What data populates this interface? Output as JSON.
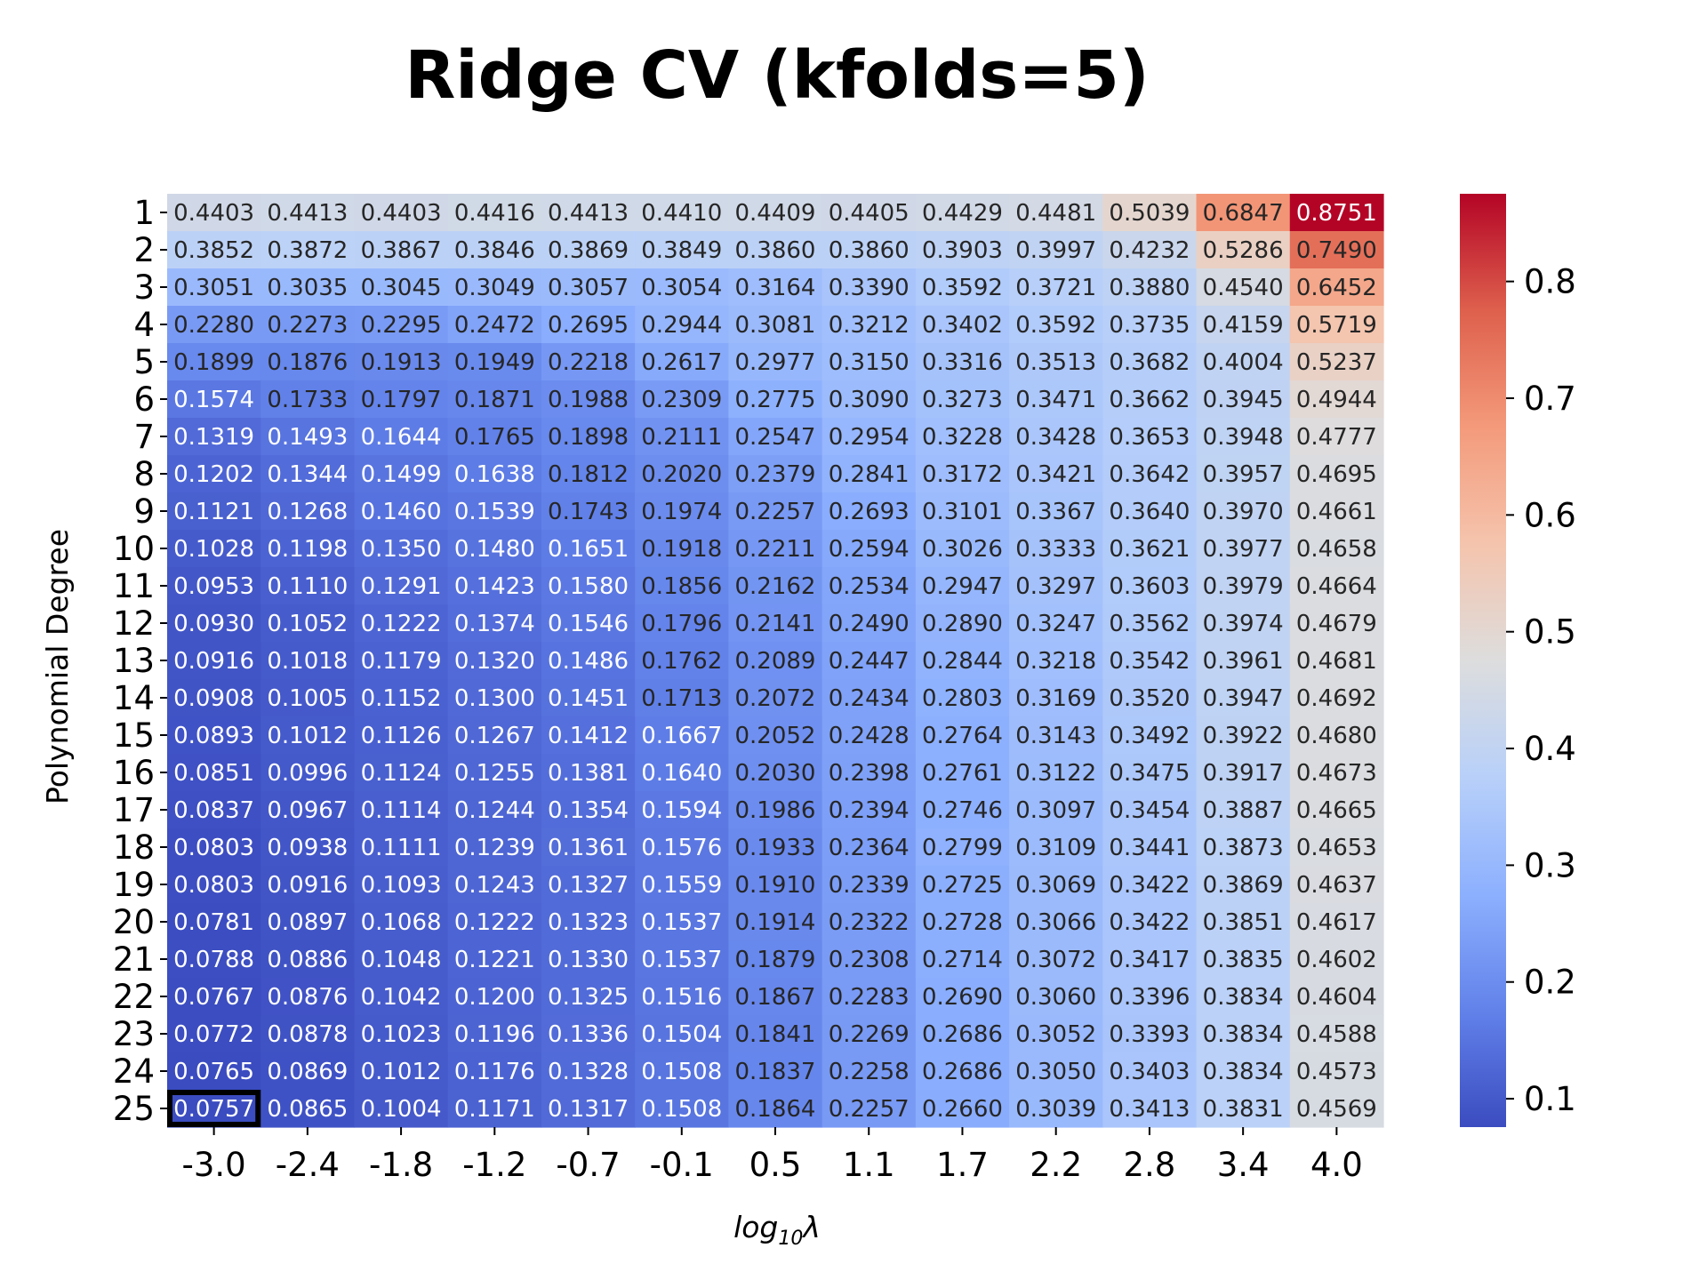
{
  "chart_data": {
    "type": "heatmap",
    "title": "Ridge CV (kfolds=5)",
    "xlabel": "log",
    "xlabel_sub": "10",
    "xlabel_tail": "λ",
    "ylabel": "Polynomial Degree",
    "x_ticks": [
      "-3.0",
      "-2.4",
      "-1.8",
      "-1.2",
      "-0.7",
      "-0.1",
      "0.5",
      "1.1",
      "1.7",
      "2.2",
      "2.8",
      "3.4",
      "4.0"
    ],
    "y_ticks": [
      "1",
      "2",
      "3",
      "4",
      "5",
      "6",
      "7",
      "8",
      "9",
      "10",
      "11",
      "12",
      "13",
      "14",
      "15",
      "16",
      "17",
      "18",
      "19",
      "20",
      "21",
      "22",
      "23",
      "24",
      "25"
    ],
    "values": [
      [
        0.4403,
        0.4413,
        0.4403,
        0.4416,
        0.4413,
        0.441,
        0.4409,
        0.4405,
        0.4429,
        0.4481,
        0.5039,
        0.6847,
        0.8751
      ],
      [
        0.3852,
        0.3872,
        0.3867,
        0.3846,
        0.3869,
        0.3849,
        0.386,
        0.386,
        0.3903,
        0.3997,
        0.4232,
        0.5286,
        0.749
      ],
      [
        0.3051,
        0.3035,
        0.3045,
        0.3049,
        0.3057,
        0.3054,
        0.3164,
        0.339,
        0.3592,
        0.3721,
        0.388,
        0.454,
        0.6452
      ],
      [
        0.228,
        0.2273,
        0.2295,
        0.2472,
        0.2695,
        0.2944,
        0.3081,
        0.3212,
        0.3402,
        0.3592,
        0.3735,
        0.4159,
        0.5719
      ],
      [
        0.1899,
        0.1876,
        0.1913,
        0.1949,
        0.2218,
        0.2617,
        0.2977,
        0.315,
        0.3316,
        0.3513,
        0.3682,
        0.4004,
        0.5237
      ],
      [
        0.1574,
        0.1733,
        0.1797,
        0.1871,
        0.1988,
        0.2309,
        0.2775,
        0.309,
        0.3273,
        0.3471,
        0.3662,
        0.3945,
        0.4944
      ],
      [
        0.1319,
        0.1493,
        0.1644,
        0.1765,
        0.1898,
        0.2111,
        0.2547,
        0.2954,
        0.3228,
        0.3428,
        0.3653,
        0.3948,
        0.4777
      ],
      [
        0.1202,
        0.1344,
        0.1499,
        0.1638,
        0.1812,
        0.202,
        0.2379,
        0.2841,
        0.3172,
        0.3421,
        0.3642,
        0.3957,
        0.4695
      ],
      [
        0.1121,
        0.1268,
        0.146,
        0.1539,
        0.1743,
        0.1974,
        0.2257,
        0.2693,
        0.3101,
        0.3367,
        0.364,
        0.397,
        0.4661
      ],
      [
        0.1028,
        0.1198,
        0.135,
        0.148,
        0.1651,
        0.1918,
        0.2211,
        0.2594,
        0.3026,
        0.3333,
        0.3621,
        0.3977,
        0.4658
      ],
      [
        0.0953,
        0.111,
        0.1291,
        0.1423,
        0.158,
        0.1856,
        0.2162,
        0.2534,
        0.2947,
        0.3297,
        0.3603,
        0.3979,
        0.4664
      ],
      [
        0.093,
        0.1052,
        0.1222,
        0.1374,
        0.1546,
        0.1796,
        0.2141,
        0.249,
        0.289,
        0.3247,
        0.3562,
        0.3974,
        0.4679
      ],
      [
        0.0916,
        0.1018,
        0.1179,
        0.132,
        0.1486,
        0.1762,
        0.2089,
        0.2447,
        0.2844,
        0.3218,
        0.3542,
        0.3961,
        0.4681
      ],
      [
        0.0908,
        0.1005,
        0.1152,
        0.13,
        0.1451,
        0.1713,
        0.2072,
        0.2434,
        0.2803,
        0.3169,
        0.352,
        0.3947,
        0.4692
      ],
      [
        0.0893,
        0.1012,
        0.1126,
        0.1267,
        0.1412,
        0.1667,
        0.2052,
        0.2428,
        0.2764,
        0.3143,
        0.3492,
        0.3922,
        0.468
      ],
      [
        0.0851,
        0.0996,
        0.1124,
        0.1255,
        0.1381,
        0.164,
        0.203,
        0.2398,
        0.2761,
        0.3122,
        0.3475,
        0.3917,
        0.4673
      ],
      [
        0.0837,
        0.0967,
        0.1114,
        0.1244,
        0.1354,
        0.1594,
        0.1986,
        0.2394,
        0.2746,
        0.3097,
        0.3454,
        0.3887,
        0.4665
      ],
      [
        0.0803,
        0.0938,
        0.1111,
        0.1239,
        0.1361,
        0.1576,
        0.1933,
        0.2364,
        0.2799,
        0.3109,
        0.3441,
        0.3873,
        0.4653
      ],
      [
        0.0803,
        0.0916,
        0.1093,
        0.1243,
        0.1327,
        0.1559,
        0.191,
        0.2339,
        0.2725,
        0.3069,
        0.3422,
        0.3869,
        0.4637
      ],
      [
        0.0781,
        0.0897,
        0.1068,
        0.1222,
        0.1323,
        0.1537,
        0.1914,
        0.2322,
        0.2728,
        0.3066,
        0.3422,
        0.3851,
        0.4617
      ],
      [
        0.0788,
        0.0886,
        0.1048,
        0.1221,
        0.133,
        0.1537,
        0.1879,
        0.2308,
        0.2714,
        0.3072,
        0.3417,
        0.3835,
        0.4602
      ],
      [
        0.0767,
        0.0876,
        0.1042,
        0.12,
        0.1325,
        0.1516,
        0.1867,
        0.2283,
        0.269,
        0.306,
        0.3396,
        0.3834,
        0.4604
      ],
      [
        0.0772,
        0.0878,
        0.1023,
        0.1196,
        0.1336,
        0.1504,
        0.1841,
        0.2269,
        0.2686,
        0.3052,
        0.3393,
        0.3834,
        0.4588
      ],
      [
        0.0765,
        0.0869,
        0.1012,
        0.1176,
        0.1328,
        0.1508,
        0.1837,
        0.2258,
        0.2686,
        0.305,
        0.3403,
        0.3834,
        0.4573
      ],
      [
        0.0757,
        0.0865,
        0.1004,
        0.1171,
        0.1317,
        0.1508,
        0.1864,
        0.2257,
        0.266,
        0.3039,
        0.3413,
        0.3831,
        0.4569
      ]
    ],
    "vmin": 0.0757,
    "vmax": 0.8751,
    "colormap": "coolwarm",
    "colorbar_ticks": [
      0.1,
      0.2,
      0.3,
      0.4,
      0.5,
      0.6,
      0.7,
      0.8
    ],
    "highlight_cell": {
      "row": 24,
      "col": 0,
      "color": "#000000"
    },
    "grid": false
  }
}
